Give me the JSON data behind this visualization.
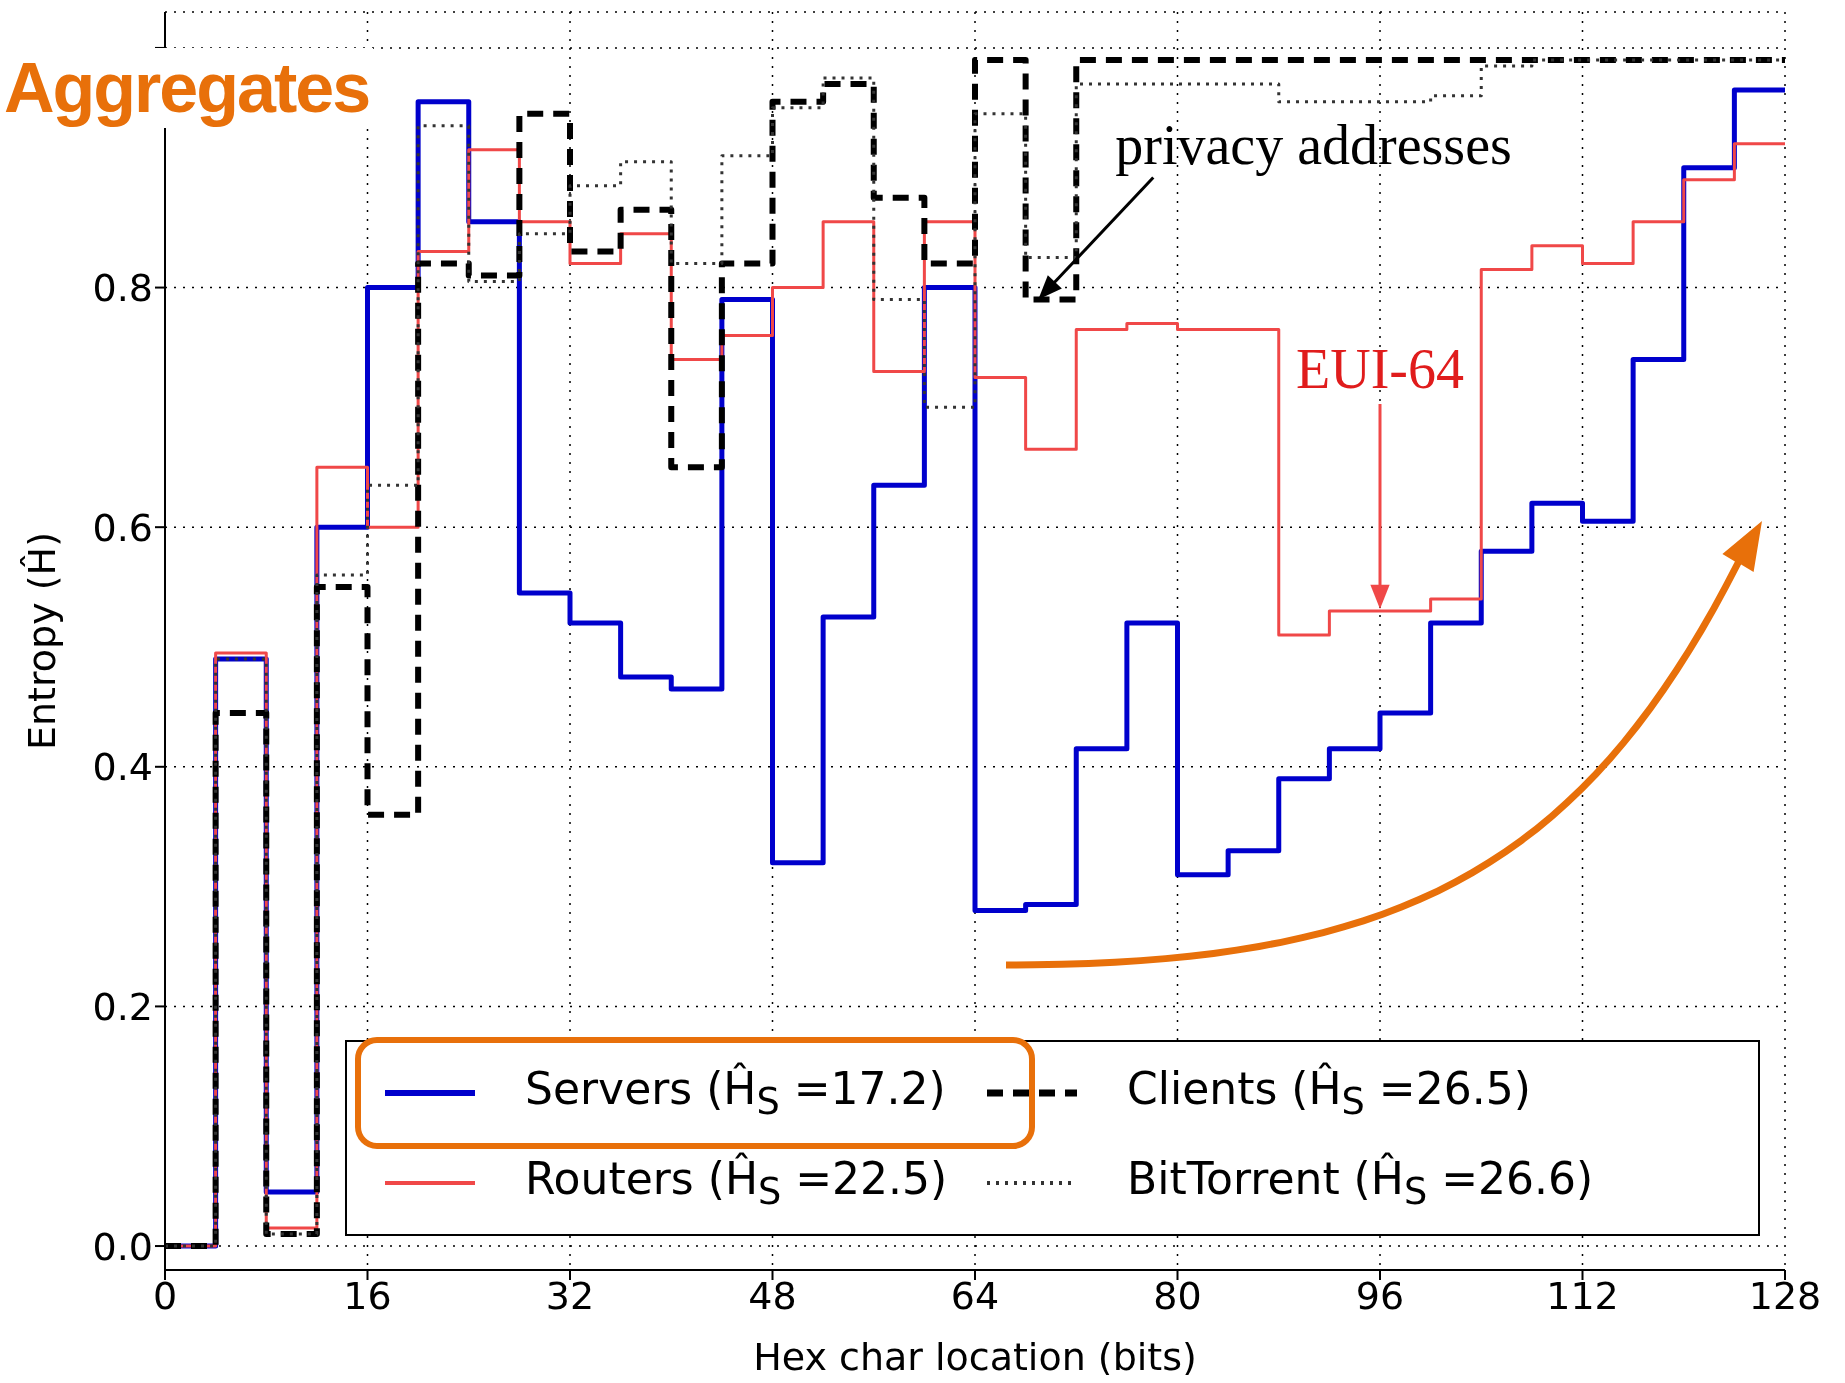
{
  "chart_data": {
    "type": "step",
    "title": "Aggregates",
    "xlabel": "Hex char location (bits)",
    "ylabel": "Entropy (Ĥ)",
    "x": [
      0,
      4,
      8,
      12,
      16,
      20,
      24,
      28,
      32,
      36,
      40,
      44,
      48,
      52,
      56,
      60,
      64,
      68,
      72,
      76,
      80,
      84,
      88,
      92,
      96,
      100,
      104,
      108,
      112,
      116,
      120,
      124,
      128
    ],
    "series": [
      {
        "name": "Servers (Ĥ$_{S}$ =17.2)",
        "color": "#0000cc",
        "line_style": "solid",
        "values": [
          0,
          0.49,
          0.045,
          0.6,
          0.8,
          0.955,
          0.855,
          0.545,
          0.52,
          0.475,
          0.465,
          0.79,
          0.32,
          0.525,
          0.635,
          0.8,
          0.28,
          0.285,
          0.415,
          0.52,
          0.31,
          0.33,
          0.39,
          0.415,
          0.445,
          0.52,
          0.58,
          0.62,
          0.605,
          0.74,
          0.9,
          0.965,
          0.965
        ]
      },
      {
        "name": "Routers (Ĥ$_{S}$ =22.5)",
        "color": "#f04848",
        "line_style": "solid",
        "values": [
          0,
          0.495,
          0.015,
          0.65,
          0.6,
          0.83,
          0.915,
          0.855,
          0.82,
          0.845,
          0.74,
          0.76,
          0.8,
          0.855,
          0.73,
          0.855,
          0.725,
          0.665,
          0.765,
          0.77,
          0.765,
          0.765,
          0.51,
          0.53,
          0.53,
          0.54,
          0.815,
          0.835,
          0.82,
          0.855,
          0.89,
          0.92,
          0.92
        ]
      },
      {
        "name": "Clients (Ĥ$_{S}$ =26.5)",
        "color": "#000000",
        "line_style": "dashed",
        "values": [
          0,
          0.445,
          0.01,
          0.55,
          0.36,
          0.82,
          0.81,
          0.945,
          0.83,
          0.865,
          0.65,
          0.82,
          0.955,
          0.97,
          0.875,
          0.82,
          0.99,
          0.79,
          0.99,
          0.99,
          0.99,
          0.99,
          0.99,
          0.99,
          0.99,
          0.99,
          0.99,
          0.99,
          0.99,
          0.99,
          0.99,
          0.99,
          0.99
        ]
      },
      {
        "name": "BitTorrent (Ĥ$_{S}$ =26.6)",
        "color": "#333333",
        "line_style": "dotted",
        "values": [
          0,
          0.49,
          0.01,
          0.56,
          0.635,
          0.935,
          0.805,
          0.845,
          0.885,
          0.905,
          0.82,
          0.91,
          0.95,
          0.975,
          0.79,
          0.7,
          0.945,
          0.825,
          0.97,
          0.97,
          0.97,
          0.97,
          0.955,
          0.955,
          0.955,
          0.96,
          0.985,
          0.99,
          0.99,
          0.99,
          0.99,
          0.99,
          0.99
        ]
      }
    ],
    "xlim": [
      0,
      128
    ],
    "xticks": [
      0,
      16,
      32,
      48,
      64,
      80,
      96,
      112,
      128
    ],
    "ylim": [
      -0.02,
      1.03
    ],
    "yticks": [
      {
        "value": 0,
        "label": "0.0"
      },
      {
        "value": 0.2,
        "label": "0.2"
      },
      {
        "value": 0.4,
        "label": "0.4"
      },
      {
        "value": 0.6,
        "label": "0.6"
      },
      {
        "value": 0.8,
        "label": "0.8"
      },
      {
        "value": 1,
        "label": null
      }
    ],
    "annotations": [
      {
        "text": "privacy addresses",
        "x": 69,
        "y": 0.79
      },
      "EUI-64"
    ],
    "grid": true,
    "legend": "bottom",
    "marker": "none"
  }
}
